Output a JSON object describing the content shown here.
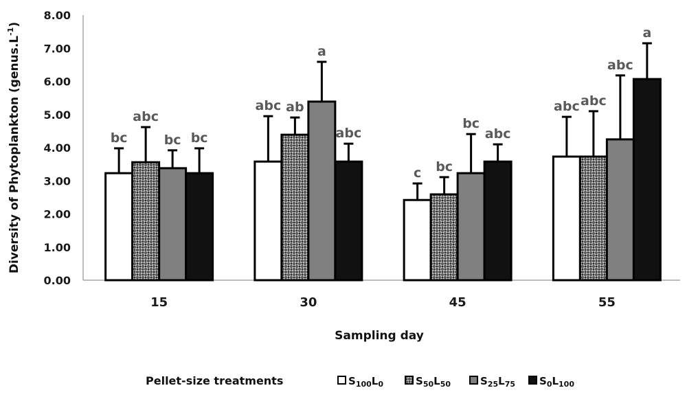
{
  "chart_data": {
    "type": "bar",
    "title": "",
    "xlabel": "Sampling day",
    "ylabel": "Diversity of Phytoplankton (genus.L",
    "ylabel_superscript": "-1",
    "ylabel_suffix": ")",
    "ylim": [
      0,
      8
    ],
    "yticks": [
      "0.00",
      "1.00",
      "2.00",
      "3.00",
      "4.00",
      "5.00",
      "6.00",
      "7.00",
      "8.00"
    ],
    "grid": false,
    "categories": [
      "15",
      "30",
      "45",
      "55"
    ],
    "legend": {
      "title": "Pellet-size treatments",
      "placement": "bottom"
    },
    "series": [
      {
        "name": "S100L0",
        "label_parts": [
          [
            "S",
            ""
          ],
          [
            "100",
            "sub"
          ],
          [
            "L",
            ""
          ],
          [
            "0",
            "sub"
          ]
        ],
        "fill": "#ffffff",
        "pattern": "none",
        "values": [
          3.23,
          3.58,
          2.42,
          3.73
        ],
        "error_upper": [
          3.98,
          4.95,
          2.92,
          4.93
        ],
        "significance": [
          "bc",
          "abc",
          "c",
          "abc"
        ]
      },
      {
        "name": "S50L50",
        "label_parts": [
          [
            "S",
            ""
          ],
          [
            "50",
            "sub"
          ],
          [
            "L",
            ""
          ],
          [
            "50",
            "sub"
          ]
        ],
        "fill": "#6e6e6e",
        "pattern": "cross-hatch",
        "values": [
          3.56,
          4.39,
          2.59,
          3.73
        ],
        "error_upper": [
          4.62,
          4.91,
          3.11,
          5.1
        ],
        "significance": [
          "abc",
          "ab",
          "bc",
          "abc"
        ]
      },
      {
        "name": "S25L75",
        "label_parts": [
          [
            "S",
            ""
          ],
          [
            "25",
            "sub"
          ],
          [
            "L",
            ""
          ],
          [
            "75",
            "sub"
          ]
        ],
        "fill": "#808080",
        "pattern": "none",
        "values": [
          3.38,
          5.39,
          3.23,
          4.25
        ],
        "error_upper": [
          3.92,
          6.59,
          4.41,
          6.18
        ],
        "significance": [
          "bc",
          "a",
          "bc",
          "abc"
        ]
      },
      {
        "name": "S0L100",
        "label_parts": [
          [
            "S",
            ""
          ],
          [
            "0",
            "sub"
          ],
          [
            "L",
            ""
          ],
          [
            "100",
            "sub"
          ]
        ],
        "fill": "#111111",
        "pattern": "none",
        "values": [
          3.23,
          3.58,
          3.58,
          6.07
        ],
        "error_upper": [
          3.98,
          4.12,
          4.1,
          7.15
        ],
        "significance": [
          "bc",
          "abc",
          "abc",
          "a"
        ]
      }
    ]
  }
}
